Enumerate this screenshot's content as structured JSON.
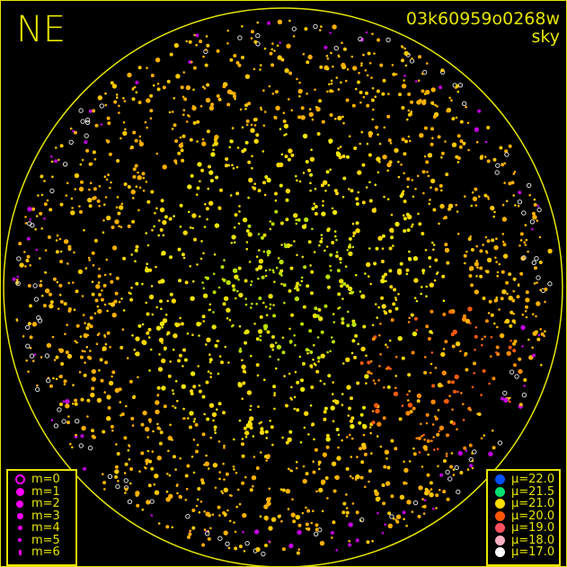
{
  "header": {
    "direction": "NE",
    "image_id": "03k60959o0268w",
    "image_type": "sky"
  },
  "magnitude_legend": [
    {
      "label": "m=0",
      "size": 0,
      "hollow": true
    },
    {
      "label": "m=1",
      "size": 1
    },
    {
      "label": "m=2",
      "size": 2
    },
    {
      "label": "m=3",
      "size": 3
    },
    {
      "label": "m=4",
      "size": 4
    },
    {
      "label": "m=5",
      "size": 5
    },
    {
      "label": "m=6",
      "size": 6
    }
  ],
  "magnitude_color": "#ff00ff",
  "brightness_legend": [
    {
      "label": "μ=22.0",
      "color": "#0050ff"
    },
    {
      "label": "μ=21.5",
      "color": "#00e070"
    },
    {
      "label": "μ=21.0",
      "color": "#ffdd00"
    },
    {
      "label": "μ=20.0",
      "color": "#ff5500"
    },
    {
      "label": "μ=19.0",
      "color": "#ff5060"
    },
    {
      "label": "μ=18.0",
      "color": "#ffb0c0"
    },
    {
      "label": "μ=17.0",
      "color": "#ffffff"
    }
  ],
  "horizon_color": "#e6e600"
}
